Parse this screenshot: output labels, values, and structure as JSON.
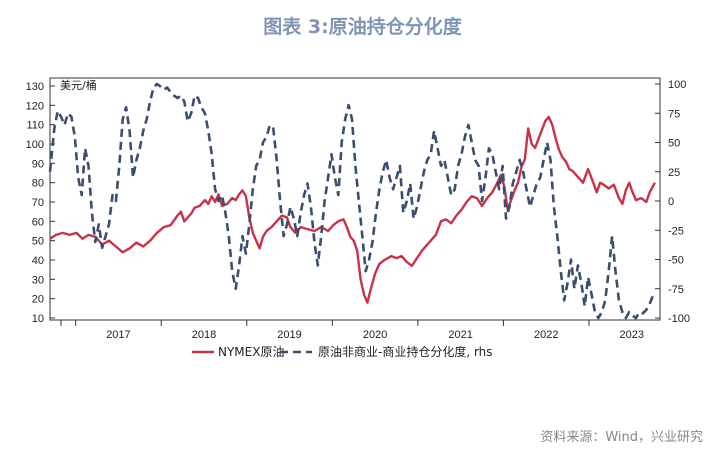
{
  "title": "图表 3:原油持仓分化度",
  "source": "资料来源：Wind，兴业研究",
  "chart_data": {
    "type": "line",
    "left_axis_unit": "美元/桶",
    "ylim_left": [
      10,
      130
    ],
    "yticks_left": [
      10,
      20,
      30,
      40,
      50,
      60,
      70,
      80,
      90,
      100,
      110,
      120,
      130
    ],
    "ylim_right": [
      -100,
      100
    ],
    "yticks_right": [
      -100,
      -75,
      -50,
      -25,
      0,
      25,
      50,
      75,
      100
    ],
    "x_range": [
      2016.55,
      2023.68
    ],
    "year_labels": [
      "2017",
      "2018",
      "2019",
      "2020",
      "2021",
      "2022",
      "2023"
    ],
    "grid": false,
    "legend_position": "bottom",
    "series": [
      {
        "name": "NYMEX原油",
        "axis": "left",
        "color": "#c8334a",
        "style": "solid",
        "points": [
          [
            2016.55,
            51
          ],
          [
            2016.62,
            53
          ],
          [
            2016.7,
            54
          ],
          [
            2016.78,
            53
          ],
          [
            2016.86,
            54
          ],
          [
            2016.93,
            51
          ],
          [
            2017.0,
            53
          ],
          [
            2017.08,
            52
          ],
          [
            2017.16,
            48
          ],
          [
            2017.24,
            50
          ],
          [
            2017.32,
            47
          ],
          [
            2017.4,
            44
          ],
          [
            2017.48,
            46
          ],
          [
            2017.56,
            49
          ],
          [
            2017.64,
            47
          ],
          [
            2017.72,
            50
          ],
          [
            2017.8,
            54
          ],
          [
            2017.88,
            57
          ],
          [
            2017.96,
            58
          ],
          [
            2018.04,
            63
          ],
          [
            2018.08,
            65
          ],
          [
            2018.12,
            60
          ],
          [
            2018.16,
            62
          ],
          [
            2018.2,
            64
          ],
          [
            2018.24,
            67
          ],
          [
            2018.3,
            68
          ],
          [
            2018.36,
            71
          ],
          [
            2018.4,
            69
          ],
          [
            2018.44,
            73
          ],
          [
            2018.48,
            70
          ],
          [
            2018.52,
            74
          ],
          [
            2018.56,
            68
          ],
          [
            2018.62,
            69
          ],
          [
            2018.68,
            72
          ],
          [
            2018.72,
            71
          ],
          [
            2018.76,
            74
          ],
          [
            2018.8,
            76
          ],
          [
            2018.84,
            73
          ],
          [
            2018.88,
            62
          ],
          [
            2018.92,
            54
          ],
          [
            2018.96,
            50
          ],
          [
            2019.0,
            46
          ],
          [
            2019.04,
            52
          ],
          [
            2019.08,
            55
          ],
          [
            2019.14,
            57
          ],
          [
            2019.2,
            60
          ],
          [
            2019.26,
            63
          ],
          [
            2019.32,
            62
          ],
          [
            2019.36,
            57
          ],
          [
            2019.42,
            54
          ],
          [
            2019.48,
            57
          ],
          [
            2019.56,
            56
          ],
          [
            2019.64,
            55
          ],
          [
            2019.72,
            57
          ],
          [
            2019.8,
            55
          ],
          [
            2019.86,
            58
          ],
          [
            2019.92,
            60
          ],
          [
            2019.98,
            61
          ],
          [
            2020.02,
            57
          ],
          [
            2020.06,
            52
          ],
          [
            2020.1,
            50
          ],
          [
            2020.14,
            45
          ],
          [
            2020.18,
            30
          ],
          [
            2020.22,
            22
          ],
          [
            2020.26,
            18
          ],
          [
            2020.3,
            25
          ],
          [
            2020.35,
            33
          ],
          [
            2020.4,
            38
          ],
          [
            2020.46,
            40
          ],
          [
            2020.54,
            42
          ],
          [
            2020.6,
            41
          ],
          [
            2020.66,
            42
          ],
          [
            2020.72,
            39
          ],
          [
            2020.78,
            37
          ],
          [
            2020.84,
            41
          ],
          [
            2020.9,
            45
          ],
          [
            2020.96,
            48
          ],
          [
            2021.0,
            50
          ],
          [
            2021.06,
            53
          ],
          [
            2021.12,
            60
          ],
          [
            2021.18,
            61
          ],
          [
            2021.24,
            59
          ],
          [
            2021.3,
            63
          ],
          [
            2021.36,
            66
          ],
          [
            2021.42,
            70
          ],
          [
            2021.48,
            73
          ],
          [
            2021.54,
            72
          ],
          [
            2021.6,
            68
          ],
          [
            2021.66,
            72
          ],
          [
            2021.72,
            75
          ],
          [
            2021.78,
            80
          ],
          [
            2021.82,
            84
          ],
          [
            2021.86,
            78
          ],
          [
            2021.9,
            66
          ],
          [
            2021.94,
            71
          ],
          [
            2021.98,
            76
          ],
          [
            2022.02,
            80
          ],
          [
            2022.06,
            88
          ],
          [
            2022.1,
            92
          ],
          [
            2022.14,
            108
          ],
          [
            2022.18,
            100
          ],
          [
            2022.22,
            98
          ],
          [
            2022.28,
            105
          ],
          [
            2022.34,
            112
          ],
          [
            2022.38,
            114
          ],
          [
            2022.42,
            110
          ],
          [
            2022.46,
            103
          ],
          [
            2022.5,
            97
          ],
          [
            2022.54,
            93
          ],
          [
            2022.58,
            91
          ],
          [
            2022.62,
            87
          ],
          [
            2022.66,
            86
          ],
          [
            2022.72,
            83
          ],
          [
            2022.78,
            80
          ],
          [
            2022.84,
            87
          ],
          [
            2022.9,
            80
          ],
          [
            2022.94,
            75
          ],
          [
            2022.98,
            80
          ],
          [
            2023.02,
            79
          ],
          [
            2023.08,
            77
          ],
          [
            2023.14,
            79
          ],
          [
            2023.2,
            72
          ],
          [
            2023.24,
            69
          ],
          [
            2023.28,
            76
          ],
          [
            2023.32,
            80
          ],
          [
            2023.36,
            75
          ],
          [
            2023.4,
            71
          ],
          [
            2023.46,
            72
          ],
          [
            2023.52,
            70
          ],
          [
            2023.56,
            75
          ],
          [
            2023.62,
            80
          ]
        ]
      },
      {
        "name": "原油非商业-商业持仓分化度, rhs",
        "axis": "right",
        "color": "#3a4e6e",
        "style": "dashed",
        "points": [
          [
            2016.55,
            25
          ],
          [
            2016.6,
            62
          ],
          [
            2016.64,
            77
          ],
          [
            2016.68,
            72
          ],
          [
            2016.72,
            65
          ],
          [
            2016.76,
            75
          ],
          [
            2016.8,
            72
          ],
          [
            2016.84,
            55
          ],
          [
            2016.88,
            20
          ],
          [
            2016.92,
            5
          ],
          [
            2016.96,
            45
          ],
          [
            2017.0,
            30
          ],
          [
            2017.04,
            -10
          ],
          [
            2017.08,
            -35
          ],
          [
            2017.12,
            -20
          ],
          [
            2017.16,
            -40
          ],
          [
            2017.2,
            -30
          ],
          [
            2017.24,
            -20
          ],
          [
            2017.28,
            5
          ],
          [
            2017.32,
            0
          ],
          [
            2017.36,
            30
          ],
          [
            2017.4,
            70
          ],
          [
            2017.44,
            80
          ],
          [
            2017.48,
            60
          ],
          [
            2017.52,
            20
          ],
          [
            2017.56,
            35
          ],
          [
            2017.6,
            45
          ],
          [
            2017.64,
            60
          ],
          [
            2017.68,
            70
          ],
          [
            2017.72,
            85
          ],
          [
            2017.76,
            97
          ],
          [
            2017.8,
            100
          ],
          [
            2017.84,
            98
          ],
          [
            2017.88,
            95
          ],
          [
            2017.92,
            97
          ],
          [
            2017.96,
            93
          ],
          [
            2018.0,
            90
          ],
          [
            2018.04,
            88
          ],
          [
            2018.08,
            90
          ],
          [
            2018.12,
            85
          ],
          [
            2018.16,
            68
          ],
          [
            2018.2,
            75
          ],
          [
            2018.24,
            90
          ],
          [
            2018.28,
            88
          ],
          [
            2018.32,
            80
          ],
          [
            2018.36,
            75
          ],
          [
            2018.4,
            60
          ],
          [
            2018.44,
            40
          ],
          [
            2018.48,
            10
          ],
          [
            2018.52,
            0
          ],
          [
            2018.56,
            5
          ],
          [
            2018.6,
            -10
          ],
          [
            2018.64,
            -30
          ],
          [
            2018.68,
            -60
          ],
          [
            2018.72,
            -75
          ],
          [
            2018.76,
            -55
          ],
          [
            2018.8,
            -30
          ],
          [
            2018.84,
            -45
          ],
          [
            2018.88,
            -20
          ],
          [
            2018.92,
            10
          ],
          [
            2018.96,
            30
          ],
          [
            2019.0,
            35
          ],
          [
            2019.04,
            50
          ],
          [
            2019.08,
            55
          ],
          [
            2019.12,
            65
          ],
          [
            2019.16,
            62
          ],
          [
            2019.2,
            35
          ],
          [
            2019.24,
            0
          ],
          [
            2019.28,
            -30
          ],
          [
            2019.32,
            -20
          ],
          [
            2019.36,
            -5
          ],
          [
            2019.4,
            -15
          ],
          [
            2019.44,
            -30
          ],
          [
            2019.48,
            -10
          ],
          [
            2019.52,
            5
          ],
          [
            2019.56,
            15
          ],
          [
            2019.6,
            -5
          ],
          [
            2019.64,
            -35
          ],
          [
            2019.68,
            -55
          ],
          [
            2019.72,
            -30
          ],
          [
            2019.76,
            0
          ],
          [
            2019.8,
            20
          ],
          [
            2019.84,
            40
          ],
          [
            2019.88,
            20
          ],
          [
            2019.92,
            5
          ],
          [
            2019.96,
            50
          ],
          [
            2020.0,
            70
          ],
          [
            2020.04,
            82
          ],
          [
            2020.08,
            70
          ],
          [
            2020.12,
            30
          ],
          [
            2020.16,
            0
          ],
          [
            2020.2,
            -30
          ],
          [
            2020.24,
            -60
          ],
          [
            2020.28,
            -50
          ],
          [
            2020.32,
            -35
          ],
          [
            2020.36,
            -10
          ],
          [
            2020.4,
            10
          ],
          [
            2020.44,
            25
          ],
          [
            2020.48,
            35
          ],
          [
            2020.52,
            20
          ],
          [
            2020.56,
            10
          ],
          [
            2020.6,
            20
          ],
          [
            2020.64,
            30
          ],
          [
            2020.68,
            -10
          ],
          [
            2020.72,
            0
          ],
          [
            2020.76,
            15
          ],
          [
            2020.8,
            -15
          ],
          [
            2020.84,
            -5
          ],
          [
            2020.88,
            10
          ],
          [
            2020.92,
            25
          ],
          [
            2020.96,
            35
          ],
          [
            2021.0,
            40
          ],
          [
            2021.04,
            60
          ],
          [
            2021.08,
            45
          ],
          [
            2021.12,
            30
          ],
          [
            2021.16,
            35
          ],
          [
            2021.2,
            20
          ],
          [
            2021.24,
            5
          ],
          [
            2021.28,
            10
          ],
          [
            2021.32,
            30
          ],
          [
            2021.36,
            40
          ],
          [
            2021.4,
            55
          ],
          [
            2021.44,
            65
          ],
          [
            2021.48,
            50
          ],
          [
            2021.52,
            35
          ],
          [
            2021.56,
            30
          ],
          [
            2021.6,
            0
          ],
          [
            2021.64,
            20
          ],
          [
            2021.68,
            45
          ],
          [
            2021.72,
            40
          ],
          [
            2021.76,
            25
          ],
          [
            2021.8,
            10
          ],
          [
            2021.84,
            30
          ],
          [
            2021.88,
            -15
          ],
          [
            2021.92,
            -5
          ],
          [
            2021.96,
            15
          ],
          [
            2022.0,
            25
          ],
          [
            2022.04,
            35
          ],
          [
            2022.08,
            25
          ],
          [
            2022.12,
            10
          ],
          [
            2022.16,
            -5
          ],
          [
            2022.2,
            5
          ],
          [
            2022.24,
            15
          ],
          [
            2022.28,
            20
          ],
          [
            2022.32,
            35
          ],
          [
            2022.36,
            50
          ],
          [
            2022.4,
            35
          ],
          [
            2022.44,
            -5
          ],
          [
            2022.48,
            -30
          ],
          [
            2022.52,
            -60
          ],
          [
            2022.56,
            -85
          ],
          [
            2022.6,
            -70
          ],
          [
            2022.64,
            -50
          ],
          [
            2022.68,
            -75
          ],
          [
            2022.72,
            -55
          ],
          [
            2022.76,
            -70
          ],
          [
            2022.8,
            -90
          ],
          [
            2022.84,
            -65
          ],
          [
            2022.88,
            -80
          ],
          [
            2022.92,
            -95
          ],
          [
            2022.96,
            -100
          ],
          [
            2023.0,
            -95
          ],
          [
            2023.04,
            -85
          ],
          [
            2023.08,
            -60
          ],
          [
            2023.12,
            -30
          ],
          [
            2023.16,
            -60
          ],
          [
            2023.2,
            -85
          ],
          [
            2023.24,
            -95
          ],
          [
            2023.28,
            -100
          ],
          [
            2023.32,
            -95
          ],
          [
            2023.36,
            -98
          ],
          [
            2023.4,
            -100
          ],
          [
            2023.44,
            -95
          ],
          [
            2023.48,
            -96
          ],
          [
            2023.52,
            -93
          ],
          [
            2023.56,
            -88
          ],
          [
            2023.6,
            -80
          ]
        ]
      }
    ]
  }
}
